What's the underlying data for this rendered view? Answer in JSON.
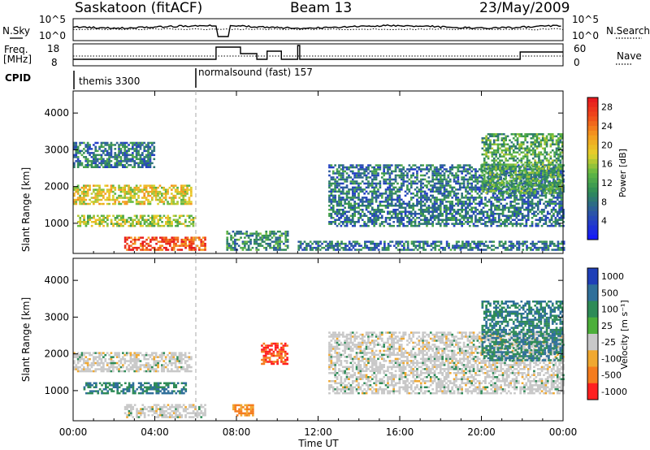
{
  "header": {
    "station": "Saskatoon (fitACF)",
    "beam": "Beam 13",
    "date": "23/May/2009"
  },
  "panels": {
    "nsky_label": "N.Sky",
    "nsearch_label": "N.Search",
    "count_ticks": [
      "10^5",
      "10^0"
    ],
    "freq_label_1": "Freq.",
    "freq_label_2": "[MHz]",
    "freq_ticks": [
      "18",
      "8"
    ],
    "nave_label": "Nave",
    "nave_ticks": [
      "60",
      "0"
    ],
    "cpid_label": "CPID",
    "cpid_modes": [
      {
        "name": "themis 3300",
        "start_hour": 0.0
      },
      {
        "name": "normalsound (fast) 157",
        "start_hour": 6.0
      }
    ]
  },
  "colorbars": {
    "power": {
      "label": "Power [dB]",
      "ticks": [
        "28",
        "24",
        "20",
        "16",
        "12",
        "8",
        "4"
      ]
    },
    "velocity": {
      "label": "Velocity [m s⁻¹]",
      "ticks": [
        "1000",
        "500",
        "100",
        "25",
        "-25",
        "-100",
        "-500",
        "-1000"
      ]
    }
  },
  "chart_data": [
    {
      "type": "heatmap",
      "name": "power",
      "ylabel": "Slant Range [km]",
      "xlabel": "",
      "xlim": [
        0,
        24
      ],
      "ylim": [
        180,
        4600
      ],
      "x_ticks": [
        "00:00",
        "04:00",
        "08:00",
        "12:00",
        "16:00",
        "20:00",
        "00:00"
      ],
      "y_ticks": [
        1000,
        2000,
        3000,
        4000
      ],
      "colorbar": "Power [dB]",
      "color_range": [
        0,
        30
      ],
      "echo_regions": [
        {
          "start_hour": 0.0,
          "end_hour": 5.8,
          "range_km": [
            1500,
            2000
          ],
          "power_db": 18
        },
        {
          "start_hour": 0.2,
          "end_hour": 6.0,
          "range_km": [
            900,
            1200
          ],
          "power_db": 16
        },
        {
          "start_hour": 2.5,
          "end_hour": 6.5,
          "range_km": [
            250,
            600
          ],
          "power_db": 26
        },
        {
          "start_hour": 0.0,
          "end_hour": 4.0,
          "range_km": [
            2500,
            3200
          ],
          "power_db": 8
        },
        {
          "start_hour": 7.5,
          "end_hour": 10.5,
          "range_km": [
            250,
            800
          ],
          "power_db": 10
        },
        {
          "start_hour": 11.0,
          "end_hour": 24.0,
          "range_km": [
            250,
            500
          ],
          "power_db": 8
        },
        {
          "start_hour": 12.5,
          "end_hour": 24.0,
          "range_km": [
            900,
            2600
          ],
          "power_db": 8
        },
        {
          "start_hour": 20.0,
          "end_hour": 24.0,
          "range_km": [
            1800,
            3400
          ],
          "power_db": 12
        }
      ]
    },
    {
      "type": "heatmap",
      "name": "velocity",
      "ylabel": "Slant Range [km]",
      "xlabel": "Time UT",
      "xlim": [
        0,
        24
      ],
      "ylim": [
        180,
        4600
      ],
      "x_ticks": [
        "00:00",
        "04:00",
        "08:00",
        "12:00",
        "16:00",
        "20:00",
        "00:00"
      ],
      "y_ticks": [
        1000,
        2000,
        3000,
        4000
      ],
      "colorbar": "Velocity [m s⁻¹]",
      "color_levels": [
        1000,
        500,
        100,
        25,
        -25,
        -100,
        -500,
        -1000
      ],
      "echo_regions": [
        {
          "start_hour": 0.0,
          "end_hour": 5.8,
          "range_km": [
            1500,
            2000
          ],
          "velocity_ms": 0
        },
        {
          "start_hour": 0.5,
          "end_hour": 5.5,
          "range_km": [
            900,
            1200
          ],
          "velocity_ms": 100
        },
        {
          "start_hour": 2.5,
          "end_hour": 6.5,
          "range_km": [
            250,
            600
          ],
          "velocity_ms": 0
        },
        {
          "start_hour": 7.8,
          "end_hour": 8.8,
          "range_km": [
            300,
            600
          ],
          "velocity_ms": -100
        },
        {
          "start_hour": 9.2,
          "end_hour": 10.5,
          "range_km": [
            1700,
            2300
          ],
          "velocity_ms": -500
        },
        {
          "start_hour": 12.5,
          "end_hour": 24.0,
          "range_km": [
            900,
            2600
          ],
          "velocity_ms": 0
        },
        {
          "start_hour": 20.0,
          "end_hour": 24.0,
          "range_km": [
            1800,
            3400
          ],
          "velocity_ms": 100
        }
      ]
    }
  ]
}
